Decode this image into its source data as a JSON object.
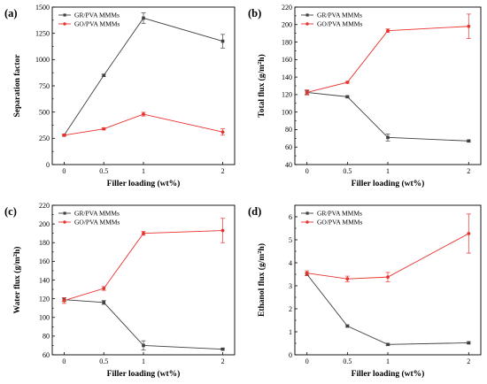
{
  "chart_data": [
    {
      "type": "line",
      "panel_label": "(a)",
      "xlabel": "Filler loading (wt%)",
      "ylabel": "Separation factor",
      "xtick_labels": [
        "0",
        "0.5",
        "1",
        "2"
      ],
      "x": [
        0,
        0.5,
        1,
        2
      ],
      "ylim": [
        0,
        1500
      ],
      "yticks": [
        "0",
        "250",
        "500",
        "750",
        "1000",
        "1250",
        "1500"
      ],
      "legend_position": "top-left",
      "series": [
        {
          "name": "GR/PVA MMMs",
          "color": "#404040",
          "marker": "square",
          "values": [
            280,
            850,
            1395,
            1175
          ],
          "errors": [
            8,
            10,
            50,
            65
          ]
        },
        {
          "name": "GO/PVA MMMs",
          "color": "#e8332f",
          "marker": "circle",
          "values": [
            280,
            340,
            480,
            310
          ],
          "errors": [
            8,
            10,
            18,
            30
          ]
        }
      ]
    },
    {
      "type": "line",
      "panel_label": "(b)",
      "xlabel": "Filler loading (wt%)",
      "ylabel": "Total flux (g/m²h)",
      "xtick_labels": [
        "0",
        "0.5",
        "1",
        "2"
      ],
      "x": [
        0,
        0.5,
        1,
        2
      ],
      "ylim": [
        40,
        220
      ],
      "yticks": [
        "40",
        "60",
        "80",
        "100",
        "120",
        "140",
        "160",
        "180",
        "200",
        "220"
      ],
      "legend_position": "top-left",
      "series": [
        {
          "name": "GR/PVA MMMs",
          "color": "#404040",
          "marker": "square",
          "values": [
            122.5,
            117.5,
            71,
            67
          ],
          "errors": [
            2,
            1,
            4,
            1
          ]
        },
        {
          "name": "GO/PVA MMMs",
          "color": "#e8332f",
          "marker": "circle",
          "values": [
            122.5,
            134,
            193,
            198
          ],
          "errors": [
            3,
            1,
            2,
            14
          ]
        }
      ]
    },
    {
      "type": "line",
      "panel_label": "(c)",
      "xlabel": "Filler loading (wt%)",
      "ylabel": "Water flux (g/m²h)",
      "xtick_labels": [
        "0",
        "0.5",
        "1",
        "2"
      ],
      "x": [
        0,
        0.5,
        1,
        2
      ],
      "ylim": [
        60,
        220
      ],
      "yticks": [
        "60",
        "80",
        "100",
        "120",
        "140",
        "160",
        "180",
        "200",
        "220"
      ],
      "legend_position": "top-left",
      "series": [
        {
          "name": "GR/PVA MMMs",
          "color": "#404040",
          "marker": "square",
          "values": [
            119,
            116,
            70,
            66
          ],
          "errors": [
            2,
            2,
            5,
            1
          ]
        },
        {
          "name": "GO/PVA MMMs",
          "color": "#e8332f",
          "marker": "circle",
          "values": [
            118,
            131,
            190,
            193
          ],
          "errors": [
            3,
            2,
            2,
            13
          ]
        }
      ]
    },
    {
      "type": "line",
      "panel_label": "(d)",
      "xlabel": "Filler loading (wt%)",
      "ylabel": "Ethanol flux (g/m²h)",
      "xtick_labels": [
        "0",
        "0.5",
        "1",
        "2"
      ],
      "x": [
        0,
        0.5,
        1,
        2
      ],
      "ylim": [
        0,
        6.5
      ],
      "yticks": [
        "0",
        "1",
        "2",
        "3",
        "4",
        "5",
        "6"
      ],
      "legend_position": "top-left",
      "series": [
        {
          "name": "GR/PVA MMMs",
          "color": "#404040",
          "marker": "square",
          "values": [
            3.5,
            1.25,
            0.45,
            0.52
          ],
          "errors": [
            0.05,
            0.05,
            0.05,
            0.05
          ]
        },
        {
          "name": "GO/PVA MMMs",
          "color": "#e8332f",
          "marker": "circle",
          "values": [
            3.55,
            3.3,
            3.38,
            5.27
          ],
          "errors": [
            0.1,
            0.12,
            0.2,
            0.85
          ]
        }
      ]
    }
  ]
}
